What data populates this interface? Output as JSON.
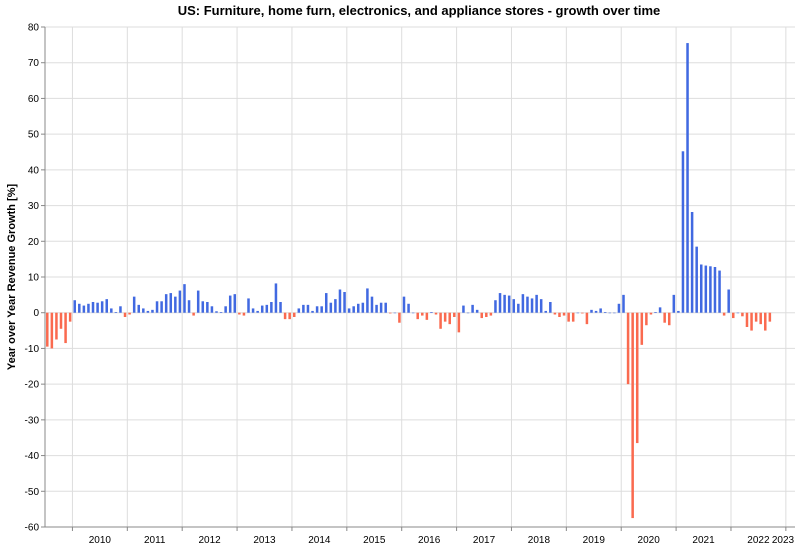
{
  "chart_data": {
    "type": "bar",
    "title": "US: Furniture, home furn, electronics, and appliance stores - growth over time",
    "xlabel": "",
    "ylabel": "Year over Year Revenue Growth [%]",
    "ylim": [
      -60,
      80
    ],
    "yticks": [
      -60,
      -50,
      -40,
      -30,
      -20,
      -10,
      0,
      10,
      20,
      30,
      40,
      50,
      60,
      70,
      80
    ],
    "xticks": [
      "2010",
      "2011",
      "2012",
      "2013",
      "2014",
      "2015",
      "2016",
      "2017",
      "2018",
      "2019",
      "2020",
      "2021",
      "2022",
      "2023"
    ],
    "x_start": "2009-07",
    "x_end": "2023-03",
    "grid": true,
    "legend": "none",
    "colors": {
      "positive": "#4169e1",
      "negative": "#fa6a4f"
    },
    "series": [
      {
        "values": [
          -9.5,
          -10,
          -7.5,
          -4.5,
          -8.5,
          -2.5,
          3.5,
          2.5,
          2,
          2.5,
          3,
          2.8,
          3.2,
          3.8,
          1.2,
          0.2,
          1.8,
          -1.2,
          -0.5,
          4.5,
          2.2,
          1.2,
          0.5,
          0.8,
          3.2,
          3.2,
          5.2,
          5.5,
          4.5,
          6.2,
          8,
          3.5,
          -0.8,
          6.2,
          3.2,
          3,
          1.8,
          0.4,
          0.2,
          1.8,
          4.8,
          5.2,
          -0.5,
          -0.8,
          4,
          1.2,
          0.5,
          2,
          2.2,
          3,
          8.2,
          3,
          -1.8,
          -1.8,
          -1.2,
          1.2,
          2.2,
          2.2,
          0.5,
          1.8,
          1.8,
          5.5,
          2.8,
          3.8,
          6.5,
          5.8,
          1.2,
          1.8,
          2.5,
          2.8,
          6.8,
          4.5,
          2.2,
          2.8,
          2.8,
          -0.2,
          0,
          -2.8,
          4.5,
          2.5,
          0,
          -1.8,
          -0.8,
          -2,
          0.2,
          -0.5,
          -4.5,
          -2.5,
          -3.2,
          -1.2,
          -5.5,
          2,
          0,
          2.2,
          0.8,
          -1.5,
          -1.2,
          -0.8,
          3.5,
          5.5,
          5,
          4.8,
          3.8,
          2.5,
          5.2,
          4.5,
          4,
          5,
          3.8,
          0.5,
          3,
          -0.5,
          -1.2,
          -0.8,
          -2.5,
          -2.5,
          0,
          -0.2,
          -3.2,
          0.8,
          0.5,
          1.2,
          0.2,
          0,
          0,
          2.5,
          5,
          -20,
          -57.5,
          -36.5,
          -9,
          -3.5,
          -0.5,
          0.2,
          1.5,
          -2.8,
          -3.5,
          5,
          0.5,
          45.2,
          75.5,
          28.2,
          18.5,
          13.5,
          13.2,
          13,
          12.8,
          11.8,
          -0.8,
          6.5,
          -1.5,
          0,
          -1,
          -4,
          -5,
          -2.5,
          -3.2,
          -5,
          -2.5
        ]
      }
    ]
  }
}
